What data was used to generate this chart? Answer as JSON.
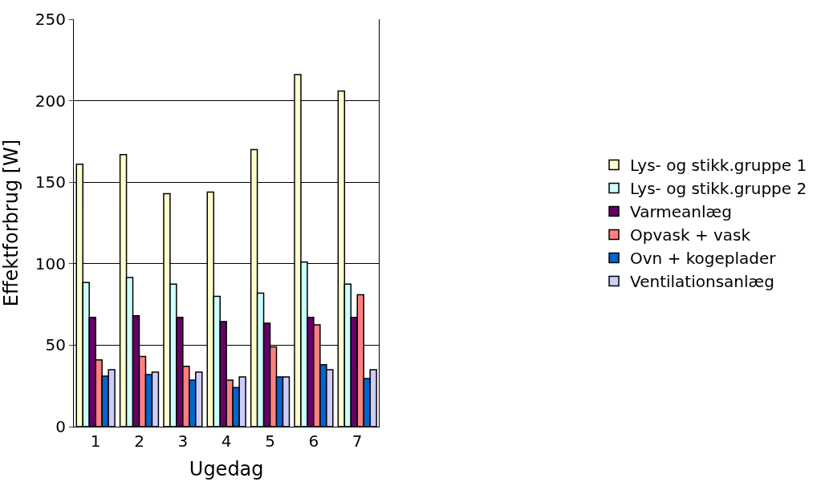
{
  "chart_data": {
    "type": "bar",
    "xlabel": "Ugedag",
    "ylabel": "Effektforbrug [W]",
    "categories": [
      "1",
      "2",
      "3",
      "4",
      "5",
      "6",
      "7"
    ],
    "series": [
      {
        "name": "Lys- og stikk.gruppe 1",
        "color": "#ffffcc",
        "values": [
          161,
          167,
          143,
          144,
          170,
          216,
          206
        ]
      },
      {
        "name": "Lys- og stikk.gruppe 2",
        "color": "#ccffff",
        "values": [
          88.5,
          91.5,
          87.5,
          80,
          82,
          101,
          87.5
        ]
      },
      {
        "name": "Varmeanlæg",
        "color": "#660066",
        "values": [
          67,
          68,
          67,
          64.5,
          63.5,
          67,
          67
        ]
      },
      {
        "name": "Opvask + vask",
        "color": "#ff8080",
        "values": [
          41,
          43,
          37,
          28.5,
          49,
          62.5,
          81
        ]
      },
      {
        "name": "Ovn + kogeplader",
        "color": "#0066cc",
        "values": [
          31,
          32,
          28.5,
          24,
          30.5,
          38,
          29.5
        ]
      },
      {
        "name": "Ventilationsanlæg",
        "color": "#ccccff",
        "values": [
          35,
          33.5,
          33.5,
          30.5,
          30.5,
          35,
          35
        ]
      }
    ],
    "ylim": [
      0,
      250
    ],
    "yticks": [
      0,
      50,
      100,
      150,
      200,
      250
    ],
    "grid": "y",
    "legend": "right"
  }
}
